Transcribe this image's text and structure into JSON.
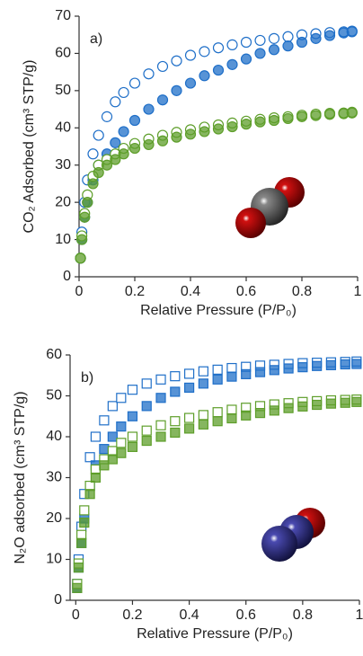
{
  "chart_data": [
    {
      "type": "scatter",
      "panel_label": "a)",
      "xlabel": "Relative Pressure (P/P₀)",
      "ylabel": "CO₂ Adsorbed (cm³ STP/g)",
      "xlim": [
        0,
        1
      ],
      "ylim": [
        0,
        70
      ],
      "xticks": [
        0,
        0.2,
        0.4,
        0.6,
        0.8,
        1
      ],
      "yticks": [
        0,
        10,
        20,
        30,
        40,
        50,
        60,
        70
      ],
      "marker": "circle",
      "series": [
        {
          "color": "#1f6fc8",
          "filled": false,
          "x": [
            0.005,
            0.01,
            0.02,
            0.03,
            0.05,
            0.07,
            0.1,
            0.13,
            0.16,
            0.2,
            0.25,
            0.3,
            0.35,
            0.4,
            0.45,
            0.5,
            0.55,
            0.6,
            0.65,
            0.7,
            0.75,
            0.8,
            0.85,
            0.9,
            0.95,
            0.98
          ],
          "values": [
            5,
            12,
            20,
            26,
            33,
            38,
            43,
            47,
            49.5,
            52,
            54.5,
            56.5,
            58,
            59.5,
            60.5,
            61.5,
            62.3,
            63,
            63.5,
            64,
            64.5,
            65,
            65.3,
            65.6,
            65.8,
            66
          ]
        },
        {
          "color": "#1f6fc8",
          "filled": true,
          "x": [
            0.005,
            0.01,
            0.02,
            0.03,
            0.05,
            0.07,
            0.1,
            0.13,
            0.16,
            0.2,
            0.25,
            0.3,
            0.35,
            0.4,
            0.45,
            0.5,
            0.55,
            0.6,
            0.65,
            0.7,
            0.75,
            0.8,
            0.85,
            0.9,
            0.95,
            0.98
          ],
          "values": [
            5,
            10,
            16,
            20,
            26,
            30,
            33,
            36,
            39,
            42,
            45,
            47.5,
            50,
            52,
            54,
            55.5,
            57,
            58.5,
            60,
            61,
            62,
            63,
            64,
            64.8,
            65.5,
            65.8
          ]
        },
        {
          "color": "#5e9e2a",
          "filled": false,
          "x": [
            0.005,
            0.01,
            0.02,
            0.03,
            0.05,
            0.07,
            0.1,
            0.13,
            0.16,
            0.2,
            0.25,
            0.3,
            0.35,
            0.4,
            0.45,
            0.5,
            0.55,
            0.6,
            0.65,
            0.7,
            0.75,
            0.8,
            0.85,
            0.9,
            0.95,
            0.98
          ],
          "values": [
            5,
            11,
            17,
            22,
            27,
            30,
            31.5,
            33,
            34.5,
            35.8,
            37,
            38,
            38.8,
            39.5,
            40.2,
            40.8,
            41.3,
            41.8,
            42.3,
            42.7,
            43,
            43.4,
            43.7,
            43.9,
            44,
            44.2
          ]
        },
        {
          "color": "#5e9e2a",
          "filled": true,
          "x": [
            0.005,
            0.01,
            0.02,
            0.03,
            0.05,
            0.07,
            0.1,
            0.13,
            0.16,
            0.2,
            0.25,
            0.3,
            0.35,
            0.4,
            0.45,
            0.5,
            0.55,
            0.6,
            0.65,
            0.7,
            0.75,
            0.8,
            0.85,
            0.9,
            0.95,
            0.98
          ],
          "values": [
            5,
            10,
            16,
            20,
            25,
            28,
            30,
            31.5,
            33,
            34.5,
            35.5,
            36.5,
            37.5,
            38.3,
            39,
            39.7,
            40.3,
            41,
            41.6,
            42,
            42.5,
            43,
            43.3,
            43.6,
            43.8,
            44
          ]
        }
      ]
    },
    {
      "type": "scatter",
      "panel_label": "b)",
      "xlabel": "Relative Pressure (P/P₀)",
      "ylabel": "N₂O adsorbed (cm³ STP/g)",
      "xlim": [
        -0.02,
        1
      ],
      "ylim": [
        0,
        60
      ],
      "xticks": [
        0,
        0.2,
        0.4,
        0.6,
        0.8,
        1
      ],
      "yticks": [
        0,
        10,
        20,
        30,
        40,
        50,
        60
      ],
      "marker": "square",
      "series": [
        {
          "color": "#1f6fc8",
          "filled": false,
          "x": [
            0.005,
            0.01,
            0.02,
            0.03,
            0.05,
            0.07,
            0.1,
            0.13,
            0.16,
            0.2,
            0.25,
            0.3,
            0.35,
            0.4,
            0.45,
            0.5,
            0.55,
            0.6,
            0.65,
            0.7,
            0.75,
            0.8,
            0.85,
            0.9,
            0.95,
            0.99
          ],
          "values": [
            4,
            10,
            18,
            26,
            35,
            40,
            44,
            47.5,
            49.5,
            51.5,
            53,
            54,
            54.8,
            55.4,
            56,
            56.4,
            56.8,
            57.1,
            57.4,
            57.6,
            57.8,
            58,
            58.1,
            58.2,
            58.3,
            58.4
          ]
        },
        {
          "color": "#1f6fc8",
          "filled": true,
          "x": [
            0.005,
            0.01,
            0.02,
            0.03,
            0.05,
            0.07,
            0.1,
            0.13,
            0.16,
            0.2,
            0.25,
            0.3,
            0.35,
            0.4,
            0.45,
            0.5,
            0.55,
            0.6,
            0.65,
            0.7,
            0.75,
            0.8,
            0.85,
            0.9,
            0.95,
            0.99
          ],
          "values": [
            3,
            8,
            14,
            20,
            28,
            33,
            37,
            40,
            42.5,
            45,
            47.5,
            49.5,
            51,
            52,
            53,
            54,
            54.7,
            55.3,
            55.8,
            56.3,
            56.7,
            57,
            57.3,
            57.5,
            57.7,
            57.8
          ]
        },
        {
          "color": "#5e9e2a",
          "filled": false,
          "x": [
            0.005,
            0.01,
            0.02,
            0.03,
            0.05,
            0.07,
            0.1,
            0.13,
            0.16,
            0.2,
            0.25,
            0.3,
            0.35,
            0.4,
            0.45,
            0.5,
            0.55,
            0.6,
            0.65,
            0.7,
            0.75,
            0.8,
            0.85,
            0.9,
            0.95,
            0.99
          ],
          "values": [
            4,
            9,
            16,
            22,
            28,
            32,
            34.5,
            36.5,
            38.5,
            40,
            41.5,
            42.8,
            43.8,
            44.6,
            45.3,
            46,
            46.6,
            47.1,
            47.5,
            47.9,
            48.2,
            48.5,
            48.7,
            48.9,
            49,
            49.1
          ]
        },
        {
          "color": "#5e9e2a",
          "filled": true,
          "x": [
            0.005,
            0.01,
            0.02,
            0.03,
            0.05,
            0.07,
            0.1,
            0.13,
            0.16,
            0.2,
            0.25,
            0.3,
            0.35,
            0.4,
            0.45,
            0.5,
            0.55,
            0.6,
            0.65,
            0.7,
            0.75,
            0.8,
            0.85,
            0.9,
            0.95,
            0.99
          ],
          "values": [
            3,
            8,
            14,
            19,
            26,
            30,
            33,
            34.5,
            36,
            37.5,
            39,
            40,
            41,
            42,
            43,
            43.8,
            44.5,
            45.2,
            45.8,
            46.4,
            47,
            47.4,
            47.8,
            48.1,
            48.3,
            48.5
          ]
        }
      ]
    }
  ]
}
